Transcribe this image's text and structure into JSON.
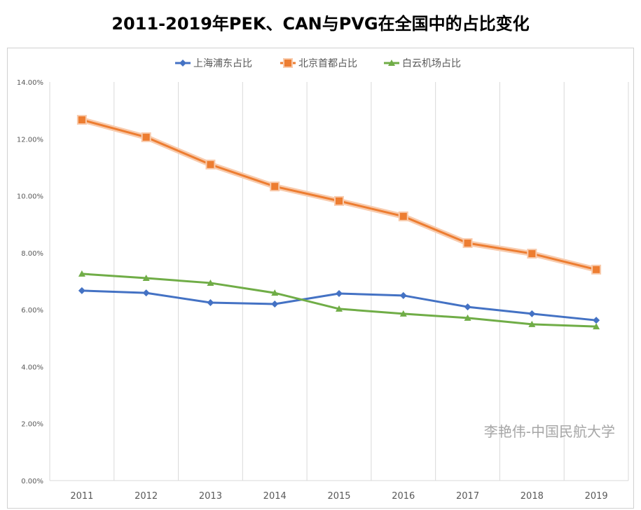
{
  "chart_data": {
    "type": "line",
    "title": "2011-2019年PEK、CAN与PVG在全国中的占比变化",
    "xlabel": "",
    "ylabel": "",
    "categories": [
      "2011",
      "2012",
      "2013",
      "2014",
      "2015",
      "2016",
      "2017",
      "2018",
      "2019"
    ],
    "ylim": [
      0,
      14
    ],
    "yticks": [
      "0.00%",
      "2.00%",
      "4.00%",
      "6.00%",
      "8.00%",
      "10.00%",
      "12.00%",
      "14.00%"
    ],
    "grid": "vertical",
    "legend": "top",
    "series": [
      {
        "name": "上海浦东占比",
        "color": "#4472c4",
        "marker": "diamond",
        "values": [
          6.67,
          6.59,
          6.25,
          6.2,
          6.57,
          6.5,
          6.1,
          5.86,
          5.63
        ]
      },
      {
        "name": "北京首都占比",
        "color": "#ed7d31",
        "marker": "square",
        "values": [
          12.67,
          12.06,
          11.1,
          10.33,
          9.82,
          9.28,
          8.34,
          7.97,
          7.41
        ]
      },
      {
        "name": "白云机场占比",
        "color": "#70ad47",
        "marker": "triangle",
        "values": [
          7.26,
          7.11,
          6.94,
          6.59,
          6.03,
          5.86,
          5.71,
          5.49,
          5.41
        ]
      }
    ],
    "watermark": "李艳伟-中国民航大学"
  }
}
